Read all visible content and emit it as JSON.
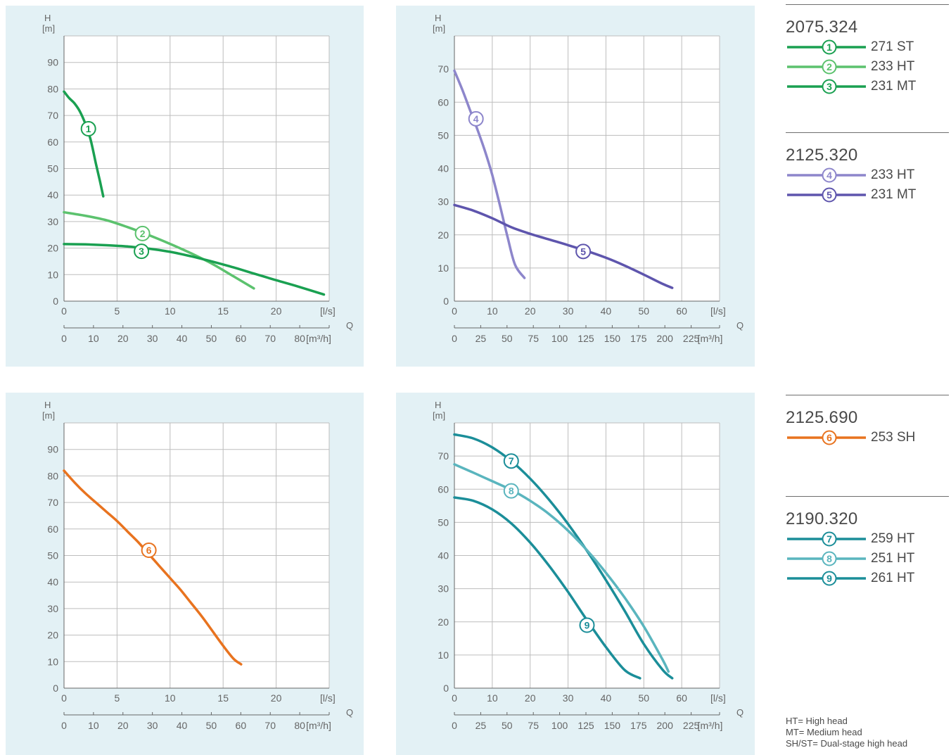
{
  "chart_data": [
    {
      "type": "line",
      "ylabel": "H",
      "yunit": "[m]",
      "xlabel": "Q",
      "xunit": "[l/s]",
      "x2unit": "[m³/h]",
      "xlim": [
        0,
        25
      ],
      "ylim": [
        0,
        100
      ],
      "xticks": [
        0,
        5,
        10,
        15,
        20
      ],
      "yticks": [
        0,
        10,
        20,
        30,
        40,
        50,
        60,
        70,
        80,
        90
      ],
      "x2ticks": [
        0,
        10,
        20,
        30,
        40,
        50,
        60,
        70,
        80
      ],
      "grid": true,
      "series": [
        {
          "name": "1",
          "color": "#1aa051",
          "x": [
            0,
            0.5,
            1,
            1.5,
            2,
            2.5,
            3,
            3.4,
            3.7
          ],
          "y": [
            79,
            76.5,
            74.5,
            71.5,
            67,
            61,
            52,
            45,
            39.5
          ],
          "marker": [
            2.3,
            65
          ]
        },
        {
          "name": "2",
          "color": "#5cc26e",
          "x": [
            0,
            2,
            4,
            6,
            8,
            10,
            12,
            14,
            16,
            17.9
          ],
          "y": [
            33.5,
            32.2,
            30.5,
            27.9,
            24.9,
            21.6,
            18,
            14,
            9.3,
            4.8
          ],
          "marker": [
            7.4,
            25.5
          ]
        },
        {
          "name": "3",
          "color": "#1aa051",
          "x": [
            0,
            2,
            4,
            6,
            8,
            10,
            12,
            14,
            16,
            18,
            20,
            22,
            24.5
          ],
          "y": [
            21.5,
            21.4,
            21.1,
            20.6,
            19.8,
            18.6,
            16.9,
            14.9,
            12.7,
            10.3,
            7.9,
            5.6,
            2.5
          ],
          "marker": [
            7.3,
            18.8
          ]
        }
      ]
    },
    {
      "type": "line",
      "ylabel": "H",
      "yunit": "[m]",
      "xlabel": "Q",
      "xunit": "[l/s]",
      "x2unit": "[m³/h]",
      "xlim": [
        0,
        70
      ],
      "ylim": [
        0,
        80
      ],
      "xticks": [
        0,
        10,
        20,
        30,
        40,
        50,
        60
      ],
      "yticks": [
        0,
        10,
        20,
        30,
        40,
        50,
        60,
        70
      ],
      "x2ticks": [
        0,
        25,
        50,
        75,
        100,
        125,
        150,
        175,
        200,
        225
      ],
      "grid": true,
      "series": [
        {
          "name": "4",
          "color": "#8d86cb",
          "x": [
            0,
            2,
            4,
            6,
            8,
            10,
            12,
            14,
            16,
            18.5
          ],
          "y": [
            69.5,
            64,
            58,
            52,
            45.5,
            38,
            29,
            19.5,
            11,
            7
          ],
          "marker": [
            5.7,
            55
          ]
        },
        {
          "name": "5",
          "color": "#5e55ad",
          "x": [
            0,
            5,
            10,
            15,
            20,
            25,
            30,
            35,
            40,
            45,
            50,
            55,
            57.5
          ],
          "y": [
            29,
            27.3,
            25,
            22.3,
            20.3,
            18.6,
            16.9,
            15.1,
            13.1,
            10.7,
            8,
            5.2,
            4
          ],
          "marker": [
            34,
            15
          ]
        }
      ]
    },
    {
      "type": "line",
      "ylabel": "H",
      "yunit": "[m]",
      "xlabel": "Q",
      "xunit": "[l/s]",
      "x2unit": "[m³/h]",
      "xlim": [
        0,
        25
      ],
      "ylim": [
        0,
        100
      ],
      "xticks": [
        0,
        5,
        10,
        15,
        20
      ],
      "yticks": [
        0,
        10,
        20,
        30,
        40,
        50,
        60,
        70,
        80,
        90
      ],
      "x2ticks": [
        0,
        10,
        20,
        30,
        40,
        50,
        60,
        70,
        80
      ],
      "grid": true,
      "series": [
        {
          "name": "6",
          "color": "#e8731f",
          "x": [
            0,
            1,
            2,
            3,
            4,
            5,
            6,
            7,
            8,
            9,
            10,
            11,
            12,
            13,
            14,
            15,
            16,
            16.7
          ],
          "y": [
            82,
            77.5,
            73.5,
            70,
            66.5,
            63,
            59,
            55,
            50.5,
            46,
            41.5,
            37,
            32,
            27,
            21.5,
            16,
            11,
            9
          ],
          "marker": [
            8,
            52
          ]
        }
      ]
    },
    {
      "type": "line",
      "ylabel": "H",
      "yunit": "[m]",
      "xlabel": "Q",
      "xunit": "[l/s]",
      "x2unit": "[m³/h]",
      "xlim": [
        0,
        70
      ],
      "ylim": [
        0,
        80
      ],
      "xticks": [
        0,
        10,
        20,
        30,
        40,
        50,
        60
      ],
      "yticks": [
        0,
        10,
        20,
        30,
        40,
        50,
        60,
        70
      ],
      "x2ticks": [
        0,
        25,
        50,
        75,
        100,
        125,
        150,
        175,
        200,
        225
      ],
      "grid": true,
      "series": [
        {
          "name": "7",
          "color": "#1b8e99",
          "x": [
            0,
            5,
            10,
            15,
            20,
            25,
            30,
            35,
            40,
            45,
            50,
            55,
            57.5
          ],
          "y": [
            76.5,
            75.3,
            72.6,
            68.5,
            63.2,
            56.8,
            49.5,
            41.4,
            32.6,
            23.2,
            13.3,
            5.5,
            3
          ],
          "marker": [
            15,
            68.5
          ]
        },
        {
          "name": "8",
          "color": "#5ab5be",
          "x": [
            0,
            5,
            10,
            15,
            20,
            25,
            30,
            35,
            40,
            45,
            50,
            55,
            56.5
          ],
          "y": [
            67.5,
            65,
            62.4,
            59.8,
            56.5,
            52.5,
            47.5,
            41.6,
            34.8,
            27.2,
            18.6,
            8.5,
            5
          ],
          "marker": [
            15,
            59.5
          ]
        },
        {
          "name": "9",
          "color": "#1b8e99",
          "x": [
            0,
            5,
            10,
            15,
            20,
            25,
            30,
            35,
            40,
            45,
            49
          ],
          "y": [
            57.5,
            56.5,
            53.9,
            49.7,
            43.9,
            36.9,
            29,
            20.5,
            12.4,
            5.4,
            3
          ],
          "marker": [
            35,
            19
          ]
        }
      ]
    }
  ],
  "legends": [
    {
      "title": "2075.324",
      "items": [
        {
          "number": "1",
          "label": "271 ST",
          "color": "#1aa051"
        },
        {
          "number": "2",
          "label": "233 HT",
          "color": "#5cc26e"
        },
        {
          "number": "3",
          "label": "231 MT",
          "color": "#1aa051"
        }
      ]
    },
    {
      "title": "2125.320",
      "items": [
        {
          "number": "4",
          "label": "233 HT",
          "color": "#8d86cb"
        },
        {
          "number": "5",
          "label": "231 MT",
          "color": "#5e55ad"
        }
      ]
    },
    {
      "title": "2125.690",
      "items": [
        {
          "number": "6",
          "label": "253 SH",
          "color": "#e8731f"
        }
      ]
    },
    {
      "title": "2190.320",
      "items": [
        {
          "number": "7",
          "label": "259 HT",
          "color": "#1b8e99"
        },
        {
          "number": "8",
          "label": "251 HT",
          "color": "#5ab5be"
        },
        {
          "number": "9",
          "label": "261 HT",
          "color": "#1b8e99"
        }
      ]
    }
  ],
  "footnotes": [
    "HT= High head",
    "MT= Medium head",
    "SH/ST= Dual-stage high head"
  ]
}
